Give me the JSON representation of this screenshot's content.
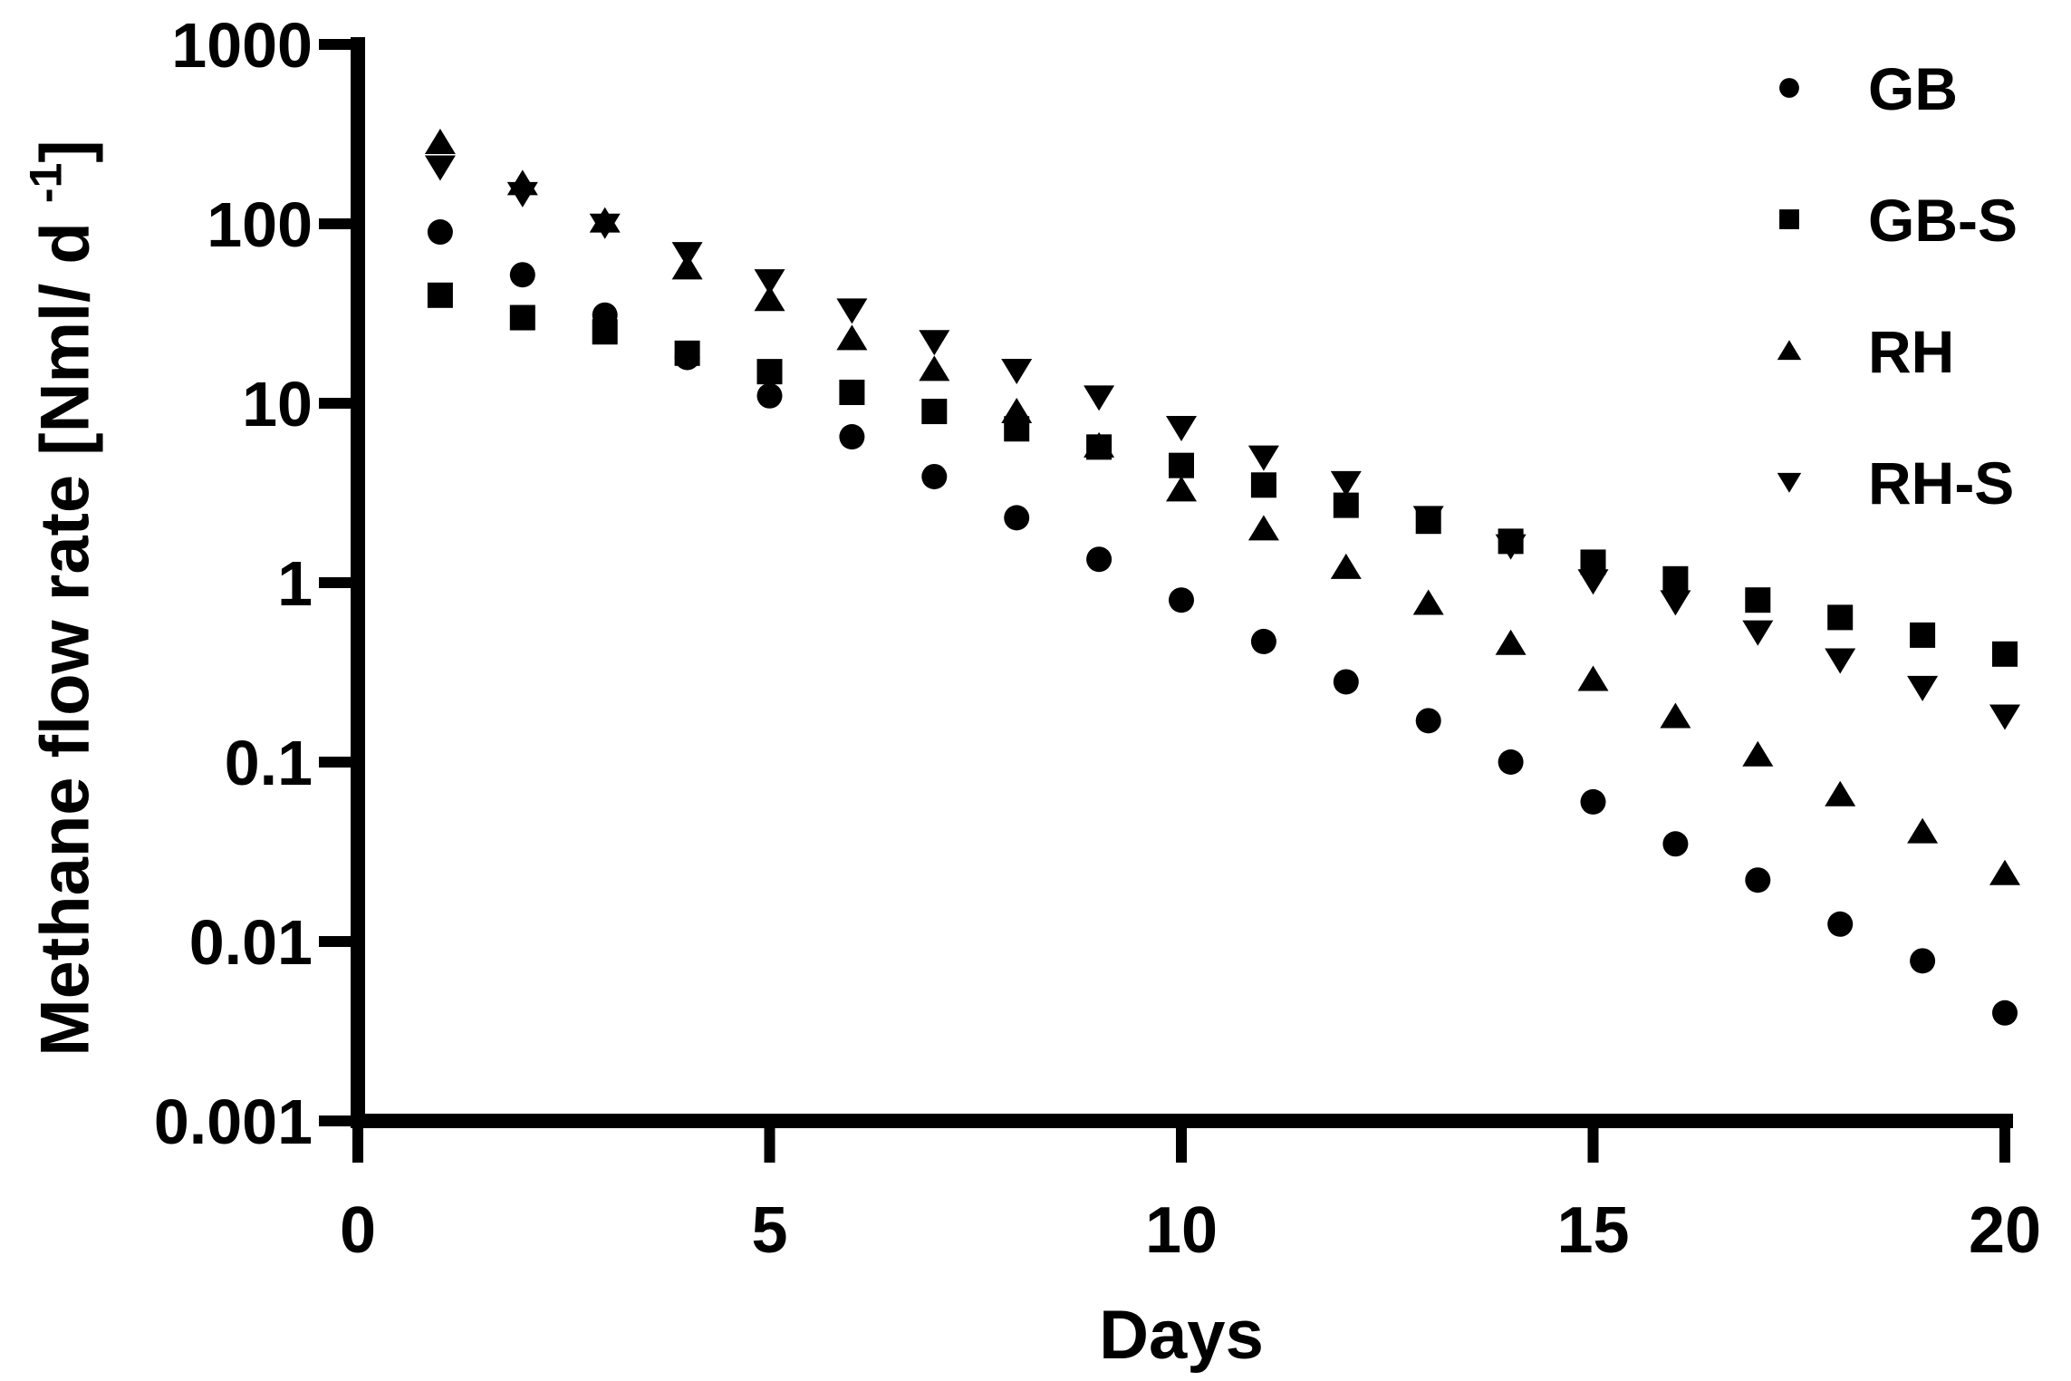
{
  "chart_data": {
    "type": "scatter",
    "title": "",
    "xlabel": "Days",
    "ylabel_prefix": "Methane flow rate [Nml/ d ",
    "ylabel_superscript": "-1",
    "ylabel_suffix": "]",
    "y_scale": "log10",
    "xlim": [
      0,
      20
    ],
    "ylim": [
      0.001,
      1000
    ],
    "grid": false,
    "legend_position": "top-right",
    "marker_color": "#000000",
    "background_color": "#ffffff",
    "x_ticks": [
      {
        "value": 0,
        "label": "0"
      },
      {
        "value": 5,
        "label": "5"
      },
      {
        "value": 10,
        "label": "10"
      },
      {
        "value": 15,
        "label": "15"
      },
      {
        "value": 20,
        "label": "20"
      }
    ],
    "y_ticks": [
      {
        "value": 1000,
        "label": "1000"
      },
      {
        "value": 100,
        "label": "100"
      },
      {
        "value": 10,
        "label": "10"
      },
      {
        "value": 1,
        "label": "1"
      },
      {
        "value": 0.1,
        "label": "0.1"
      },
      {
        "value": 0.01,
        "label": "0.01"
      },
      {
        "value": 0.001,
        "label": "0.001"
      }
    ],
    "x": [
      1,
      2,
      3,
      4,
      5,
      6,
      7,
      8,
      9,
      10,
      11,
      12,
      13,
      14,
      15,
      16,
      17,
      18,
      19,
      20
    ],
    "series": [
      {
        "name": "GB",
        "marker": "circle",
        "values": [
          90,
          52,
          31,
          18,
          11,
          6.5,
          3.9,
          2.3,
          1.35,
          0.8,
          0.47,
          0.28,
          0.17,
          0.1,
          0.06,
          0.035,
          0.022,
          0.0125,
          0.0078,
          0.004
        ]
      },
      {
        "name": "GB-S",
        "marker": "square",
        "values": [
          40,
          30,
          25,
          19,
          15,
          11.5,
          9,
          7.2,
          5.7,
          4.5,
          3.5,
          2.7,
          2.2,
          1.7,
          1.3,
          1.05,
          0.8,
          0.64,
          0.51,
          0.4
        ]
      },
      {
        "name": "RH",
        "marker": "triangle-up",
        "values": [
          285,
          168,
          104,
          57,
          38,
          23,
          15.5,
          9,
          5.8,
          3.3,
          2,
          1.22,
          0.77,
          0.46,
          0.29,
          0.18,
          0.11,
          0.066,
          0.041,
          0.024
        ]
      },
      {
        "name": "RH-S",
        "marker": "triangle-down",
        "values": [
          207,
          147,
          98,
          68,
          48,
          33,
          22,
          15.2,
          10.8,
          7.3,
          5,
          3.6,
          2.3,
          1.6,
          1.02,
          0.78,
          0.53,
          0.37,
          0.26,
          0.18
        ]
      }
    ]
  }
}
